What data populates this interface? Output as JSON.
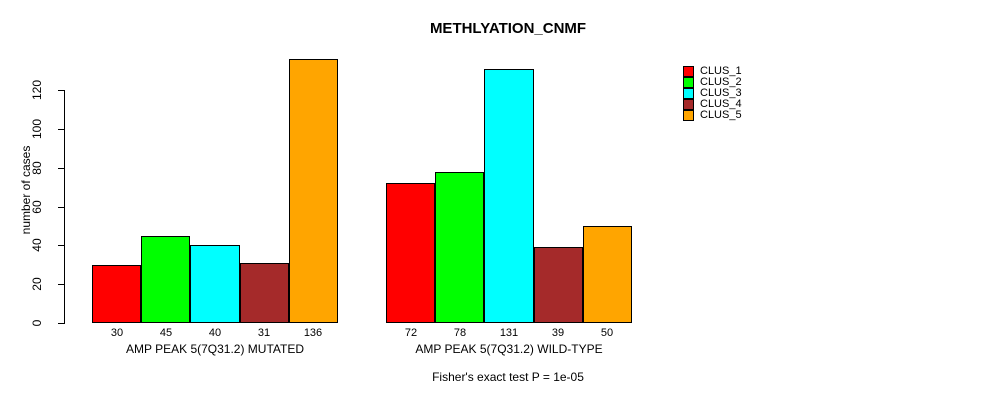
{
  "title": "METHLYATION_CNMF",
  "y_axis": {
    "label": "number of cases",
    "ticks": [
      0,
      20,
      40,
      60,
      80,
      100,
      120
    ]
  },
  "footer": "Fisher's exact test P = 1e-05",
  "legend": {
    "items": [
      {
        "label": "CLUS_1",
        "color": "#ff0000"
      },
      {
        "label": "CLUS_2",
        "color": "#00ff00"
      },
      {
        "label": "CLUS_3",
        "color": "#00ffff"
      },
      {
        "label": "CLUS_4",
        "color": "#a52a2a"
      },
      {
        "label": "CLUS_5",
        "color": "#ffa500"
      }
    ]
  },
  "chart_data": {
    "type": "bar",
    "title": "METHLYATION_CNMF",
    "ylabel": "number of cases",
    "xlabel": "",
    "ylim": [
      0,
      136
    ],
    "yticks": [
      0,
      20,
      40,
      60,
      80,
      100,
      120
    ],
    "grid": false,
    "legend_position": "right",
    "series_names": [
      "CLUS_1",
      "CLUS_2",
      "CLUS_3",
      "CLUS_4",
      "CLUS_5"
    ],
    "colors": [
      "#ff0000",
      "#00ff00",
      "#00ffff",
      "#a52a2a",
      "#ffa500"
    ],
    "groups": [
      {
        "label": "AMP PEAK 5(7Q31.2) MUTATED",
        "values": [
          30,
          45,
          40,
          31,
          136
        ]
      },
      {
        "label": "AMP PEAK 5(7Q31.2) WILD-TYPE",
        "values": [
          72,
          78,
          131,
          39,
          50
        ]
      }
    ],
    "bar_value_labels_shown": true,
    "annotation": "Fisher's exact test P = 1e-05"
  }
}
